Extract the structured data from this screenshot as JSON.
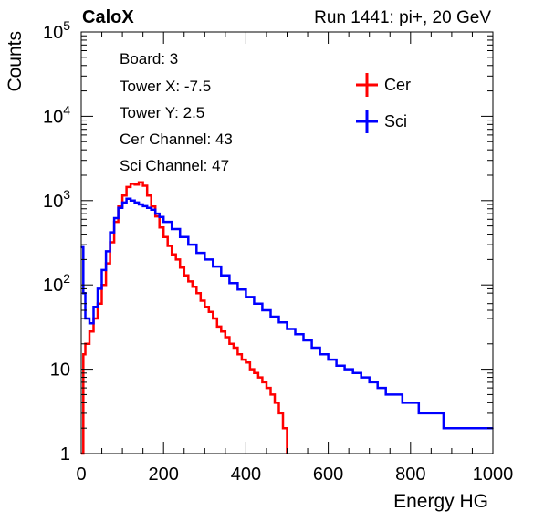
{
  "header": {
    "left": "CaloX",
    "right": "Run 1441: pi+, 20 GeV"
  },
  "info_box": {
    "lines": [
      "Board: 3",
      "Tower X: -7.5",
      "Tower Y: 2.5",
      "Cer Channel: 43",
      "Sci Channel: 47"
    ]
  },
  "chart_data": {
    "type": "line",
    "xlabel": "Energy HG",
    "ylabel": "Counts",
    "xlim": [
      0,
      1000
    ],
    "ylim": [
      1,
      100000
    ],
    "ylog": true,
    "x_ticks": [
      0,
      200,
      400,
      600,
      800,
      1000
    ],
    "y_tick_labels": [
      {
        "value": 1,
        "base": "1",
        "exp": ""
      },
      {
        "value": 10,
        "base": "10",
        "exp": ""
      },
      {
        "value": 100,
        "base": "10",
        "exp": "2"
      },
      {
        "value": 1000,
        "base": "10",
        "exp": "3"
      },
      {
        "value": 10000,
        "base": "10",
        "exp": "4"
      },
      {
        "value": 100000,
        "base": "10",
        "exp": "5"
      }
    ],
    "legend_position": "top-right",
    "series": [
      {
        "name": "Cer",
        "color": "#ff0000",
        "x": [
          0,
          5,
          10,
          20,
          30,
          40,
          50,
          60,
          70,
          80,
          90,
          100,
          110,
          120,
          130,
          140,
          150,
          160,
          170,
          180,
          190,
          200,
          210,
          220,
          230,
          240,
          250,
          260,
          270,
          280,
          290,
          300,
          310,
          320,
          330,
          340,
          350,
          360,
          370,
          380,
          390,
          400,
          410,
          420,
          430,
          440,
          450,
          460,
          470,
          480,
          490,
          500
        ],
        "y": [
          1,
          15,
          20,
          28,
          40,
          60,
          100,
          180,
          320,
          560,
          850,
          1150,
          1450,
          1580,
          1550,
          1650,
          1500,
          1150,
          850,
          650,
          480,
          370,
          290,
          230,
          200,
          160,
          130,
          110,
          95,
          80,
          65,
          55,
          48,
          40,
          32,
          28,
          24,
          20,
          18,
          15,
          13,
          12,
          10,
          9,
          8,
          7,
          6,
          5,
          4,
          3,
          2,
          1
        ]
      },
      {
        "name": "Sci",
        "color": "#0000ff",
        "x": [
          0,
          5,
          10,
          20,
          30,
          40,
          50,
          60,
          70,
          80,
          90,
          100,
          110,
          120,
          130,
          140,
          150,
          160,
          170,
          180,
          190,
          200,
          220,
          240,
          260,
          280,
          300,
          320,
          340,
          360,
          380,
          400,
          420,
          440,
          460,
          480,
          500,
          520,
          540,
          560,
          580,
          600,
          620,
          640,
          660,
          680,
          700,
          720,
          740,
          760,
          780,
          800,
          820,
          840,
          860,
          880,
          900,
          920,
          940,
          960,
          980,
          1000
        ],
        "y": [
          280,
          80,
          40,
          35,
          55,
          90,
          150,
          250,
          420,
          620,
          820,
          950,
          1050,
          1000,
          950,
          900,
          860,
          820,
          780,
          700,
          640,
          560,
          460,
          370,
          300,
          240,
          200,
          165,
          130,
          105,
          88,
          72,
          60,
          50,
          42,
          36,
          30,
          26,
          22,
          18,
          15,
          13,
          11,
          10,
          9,
          8,
          7,
          6,
          5,
          5,
          4,
          4,
          3,
          3,
          3,
          2,
          2,
          2,
          2,
          2,
          2,
          2
        ]
      }
    ]
  }
}
